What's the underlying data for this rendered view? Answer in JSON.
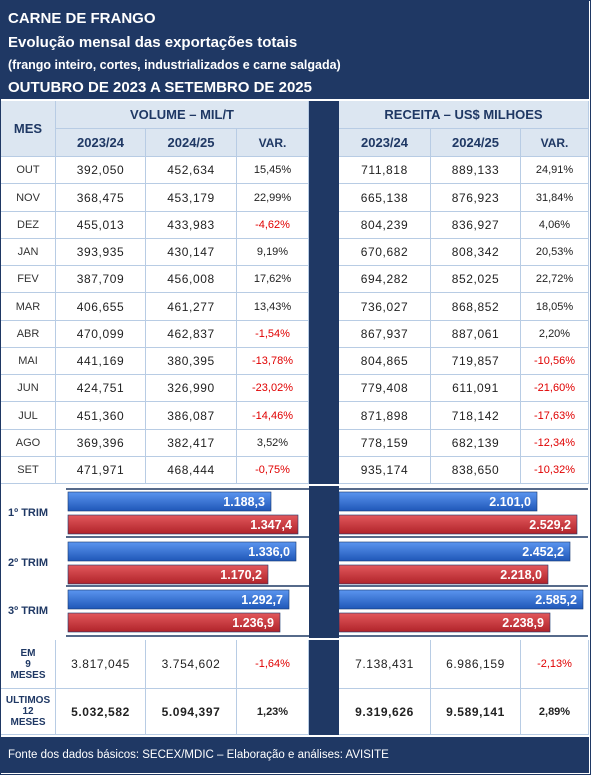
{
  "header": {
    "line1": "CARNE DE FRANGO",
    "line2": "Evolução mensal das exportações totais",
    "line3": "(frango inteiro, cortes, industrializados e carne salgada)",
    "line4": "OUTUBRO DE 2023 A SETEMBRO DE 2025"
  },
  "table": {
    "mes_header": "MES",
    "volume_header": "VOLUME – MIL/T",
    "receita_header": "RECEITA – US$ MILHOES",
    "col_2324": "2023/24",
    "col_2425": "2024/25",
    "col_var": "VAR.",
    "rows": [
      {
        "mes": "OUT",
        "v1": "392,050",
        "v2": "452,634",
        "vv": "15,45%",
        "r1": "711,818",
        "r2": "889,133",
        "rv": "24,91%"
      },
      {
        "mes": "NOV",
        "v1": "368,475",
        "v2": "453,179",
        "vv": "22,99%",
        "r1": "665,138",
        "r2": "876,923",
        "rv": "31,84%"
      },
      {
        "mes": "DEZ",
        "v1": "455,013",
        "v2": "433,983",
        "vv": "-4,62%",
        "r1": "804,239",
        "r2": "836,927",
        "rv": "4,06%"
      },
      {
        "mes": "JAN",
        "v1": "393,935",
        "v2": "430,147",
        "vv": "9,19%",
        "r1": "670,682",
        "r2": "808,342",
        "rv": "20,53%"
      },
      {
        "mes": "FEV",
        "v1": "387,709",
        "v2": "456,008",
        "vv": "17,62%",
        "r1": "694,282",
        "r2": "852,025",
        "rv": "22,72%"
      },
      {
        "mes": "MAR",
        "v1": "406,655",
        "v2": "461,277",
        "vv": "13,43%",
        "r1": "736,027",
        "r2": "868,852",
        "rv": "18,05%"
      },
      {
        "mes": "ABR",
        "v1": "470,099",
        "v2": "462,837",
        "vv": "-1,54%",
        "r1": "867,937",
        "r2": "887,061",
        "rv": "2,20%"
      },
      {
        "mes": "MAI",
        "v1": "441,169",
        "v2": "380,395",
        "vv": "-13,78%",
        "r1": "804,865",
        "r2": "719,857",
        "rv": "-10,56%"
      },
      {
        "mes": "JUN",
        "v1": "424,751",
        "v2": "326,990",
        "vv": "-23,02%",
        "r1": "779,408",
        "r2": "611,091",
        "rv": "-21,60%"
      },
      {
        "mes": "JUL",
        "v1": "451,360",
        "v2": "386,087",
        "vv": "-14,46%",
        "r1": "871,898",
        "r2": "718,142",
        "rv": "-17,63%"
      },
      {
        "mes": "AGO",
        "v1": "369,396",
        "v2": "382,417",
        "vv": "3,52%",
        "r1": "778,159",
        "r2": "682,139",
        "rv": "-12,34%"
      },
      {
        "mes": "SET",
        "v1": "471,971",
        "v2": "468,444",
        "vv": "-0,75%",
        "r1": "935,174",
        "r2": "838,650",
        "rv": "-10,32%"
      }
    ]
  },
  "chart_data": {
    "type": "bar",
    "categories": [
      "1º TRIM",
      "2º TRIM",
      "3º TRIM"
    ],
    "volume": {
      "series": [
        {
          "values": [
            1188.3,
            1336.0,
            1292.7
          ],
          "labels": [
            "1.188,3",
            "1.336,0",
            "1.292,7"
          ],
          "color": "#2e6ed6"
        },
        {
          "values": [
            1347.4,
            1170.2,
            1236.9
          ],
          "labels": [
            "1.347,4",
            "1.170,2",
            "1.236,9"
          ],
          "color": "#d0363a"
        }
      ]
    },
    "receita": {
      "series": [
        {
          "values": [
            2101.0,
            2452.2,
            2585.2
          ],
          "labels": [
            "2.101,0",
            "2.452,2",
            "2.585,2"
          ],
          "color": "#2e6ed6"
        },
        {
          "values": [
            2529.2,
            2218.0,
            2238.9
          ],
          "labels": [
            "2.529,2",
            "2.218,0",
            "2.238,9"
          ],
          "color": "#d0363a"
        }
      ]
    }
  },
  "summary": [
    {
      "label": "EM 9 MESES",
      "label_lines": [
        "EM",
        "9",
        "MESES"
      ],
      "v1": "3.817,045",
      "v2": "3.754,602",
      "vv": "-1,64%",
      "r1": "7.138,431",
      "r2": "6.986,159",
      "rv": "-2,13%"
    },
    {
      "label": "ULTIMOS 12 MESES",
      "label_lines": [
        "ULTIMOS",
        "12",
        "MESES"
      ],
      "v1": "5.032,582",
      "v2": "5.094,397",
      "vv": "1,23%",
      "r1": "9.319,626",
      "r2": "9.589,141",
      "rv": "2,89%"
    }
  ],
  "footer": "Fonte dos dados básicos: SECEX/MDIC – Elaboração e análises: AVISITE"
}
